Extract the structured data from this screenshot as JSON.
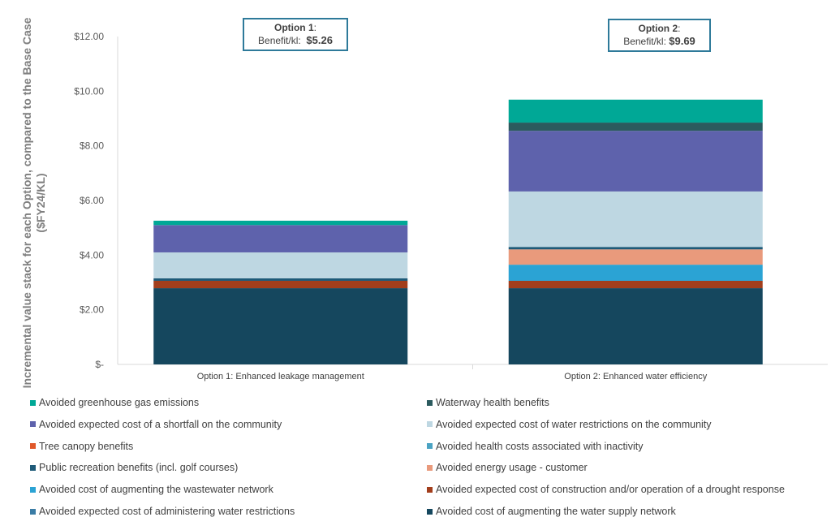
{
  "chart_data": {
    "type": "bar",
    "stacked": true,
    "categories": [
      "Option 1: Enhanced leakage management",
      "Option 2: Enhanced water efficiency"
    ],
    "ylabel": "Incremental value stack for each Option, compared to the Base Case ($FY24/KL)",
    "ylabel_lines": [
      "Incremental value stack for each Option, compared to the Base Case",
      "($FY24/KL)"
    ],
    "ylim": [
      0,
      12
    ],
    "yticks": [
      0,
      2,
      4,
      6,
      8,
      10,
      12
    ],
    "ytick_labels": [
      "$-",
      "$2.00",
      "$4.00",
      "$6.00",
      "$8.00",
      "$10.00",
      "$12.00"
    ],
    "grid": false,
    "legend_position": "bottom",
    "series": [
      {
        "name": "Avoided cost of augmenting the water supply network",
        "color": "#15475e",
        "values": [
          2.79,
          2.79
        ]
      },
      {
        "name": "Avoided expected cost of administering water restrictions",
        "color": "#3a7ca5",
        "values": [
          0.0,
          0.0
        ]
      },
      {
        "name": "Avoided expected cost of construction and/or operation of a drought response",
        "color": "#a23e1c",
        "values": [
          0.27,
          0.27
        ]
      },
      {
        "name": "Avoided cost of augmenting the wastewater network",
        "color": "#2ba3d4",
        "values": [
          0.0,
          0.59
        ]
      },
      {
        "name": "Avoided energy usage - customer",
        "color": "#e99a7c",
        "values": [
          0.0,
          0.56
        ]
      },
      {
        "name": "Public recreation benefits (incl. golf courses)",
        "color": "#1e5a78",
        "values": [
          0.09,
          0.09
        ]
      },
      {
        "name": "Avoided health costs associated with inactivity",
        "color": "#4ba3c3",
        "values": [
          0.0,
          0.0
        ]
      },
      {
        "name": "Tree canopy benefits",
        "color": "#e0582a",
        "values": [
          0.0,
          0.0
        ]
      },
      {
        "name": "Avoided expected cost of water restrictions on the community",
        "color": "#bed7e2",
        "values": [
          0.95,
          2.03
        ]
      },
      {
        "name": "Avoided expected cost of a shortfall on the community",
        "color": "#5e62ac",
        "values": [
          1.0,
          2.22
        ]
      },
      {
        "name": "Waterway health benefits",
        "color": "#2b5a5e",
        "values": [
          0.0,
          0.3
        ]
      },
      {
        "name": "Avoided greenhouse gas emissions",
        "color": "#00a896",
        "values": [
          0.16,
          0.84
        ]
      }
    ],
    "annotations": [
      {
        "title": "Option 1",
        "label": "Benefit/kl:",
        "value": "$5.26"
      },
      {
        "title": "Option 2",
        "label": "Benefit/kl:",
        "value": "$9.69"
      }
    ]
  },
  "legend_order": [
    11,
    10,
    9,
    8,
    7,
    6,
    5,
    4,
    3,
    2,
    1,
    0
  ]
}
